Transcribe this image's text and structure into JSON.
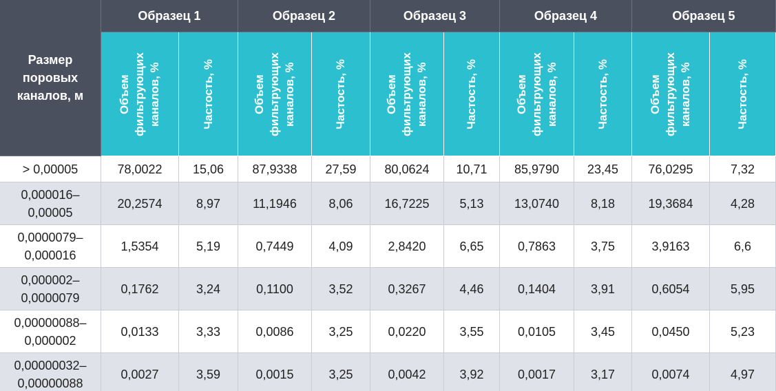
{
  "table": {
    "corner": "Размер поровых каналов, м",
    "samples": [
      {
        "name": "Образец 1",
        "columns": [
          "Объем фильтрующих каналов, %",
          "Частость, %"
        ]
      },
      {
        "name": "Образец 2",
        "columns": [
          "Объем фильтрующих каналов, %",
          "Частость, %"
        ]
      },
      {
        "name": "Образец 3",
        "columns": [
          "Объем фильтрующих каналов, %",
          "Частость, %"
        ]
      },
      {
        "name": "Образец 4",
        "columns": [
          "Объем фильтрующих каналов, %",
          "Частость, %"
        ]
      },
      {
        "name": "Образец 5",
        "columns": [
          "Объем фильтрующих каналов, %",
          "Частость, %"
        ]
      }
    ],
    "rows": [
      [
        "> 0,00005",
        "78,0022",
        "15,06",
        "87,9338",
        "27,59",
        "80,0624",
        "10,71",
        "85,9790",
        "23,45",
        "76,0295",
        "7,32"
      ],
      [
        "0,000016–0,00005",
        "20,2574",
        "8,97",
        "11,1946",
        "8,06",
        "16,7225",
        "5,13",
        "13,0740",
        "8,18",
        "19,3684",
        "4,28"
      ],
      [
        "0,0000079–0,000016",
        "1,5354",
        "5,19",
        "0,7449",
        "4,09",
        "2,8420",
        "6,65",
        "0,7863",
        "3,75",
        "3,9163",
        "6,6"
      ],
      [
        "0,000002–0,0000079",
        "0,1762",
        "3,24",
        "0,1100",
        "3,52",
        "0,3267",
        "4,46",
        "0,1404",
        "3,91",
        "0,6054",
        "5,95"
      ],
      [
        "0,00000088–0,000002",
        "0,0133",
        "3,33",
        "0,0086",
        "3,25",
        "0,0220",
        "3,55",
        "0,0105",
        "3,45",
        "0,0450",
        "5,23"
      ],
      [
        "0,00000032–0,00000088",
        "0,0027",
        "3,59",
        "0,0015",
        "3,25",
        "0,0042",
        "3,92",
        "0,0017",
        "3,17",
        "0,0074",
        "4,97"
      ]
    ]
  }
}
